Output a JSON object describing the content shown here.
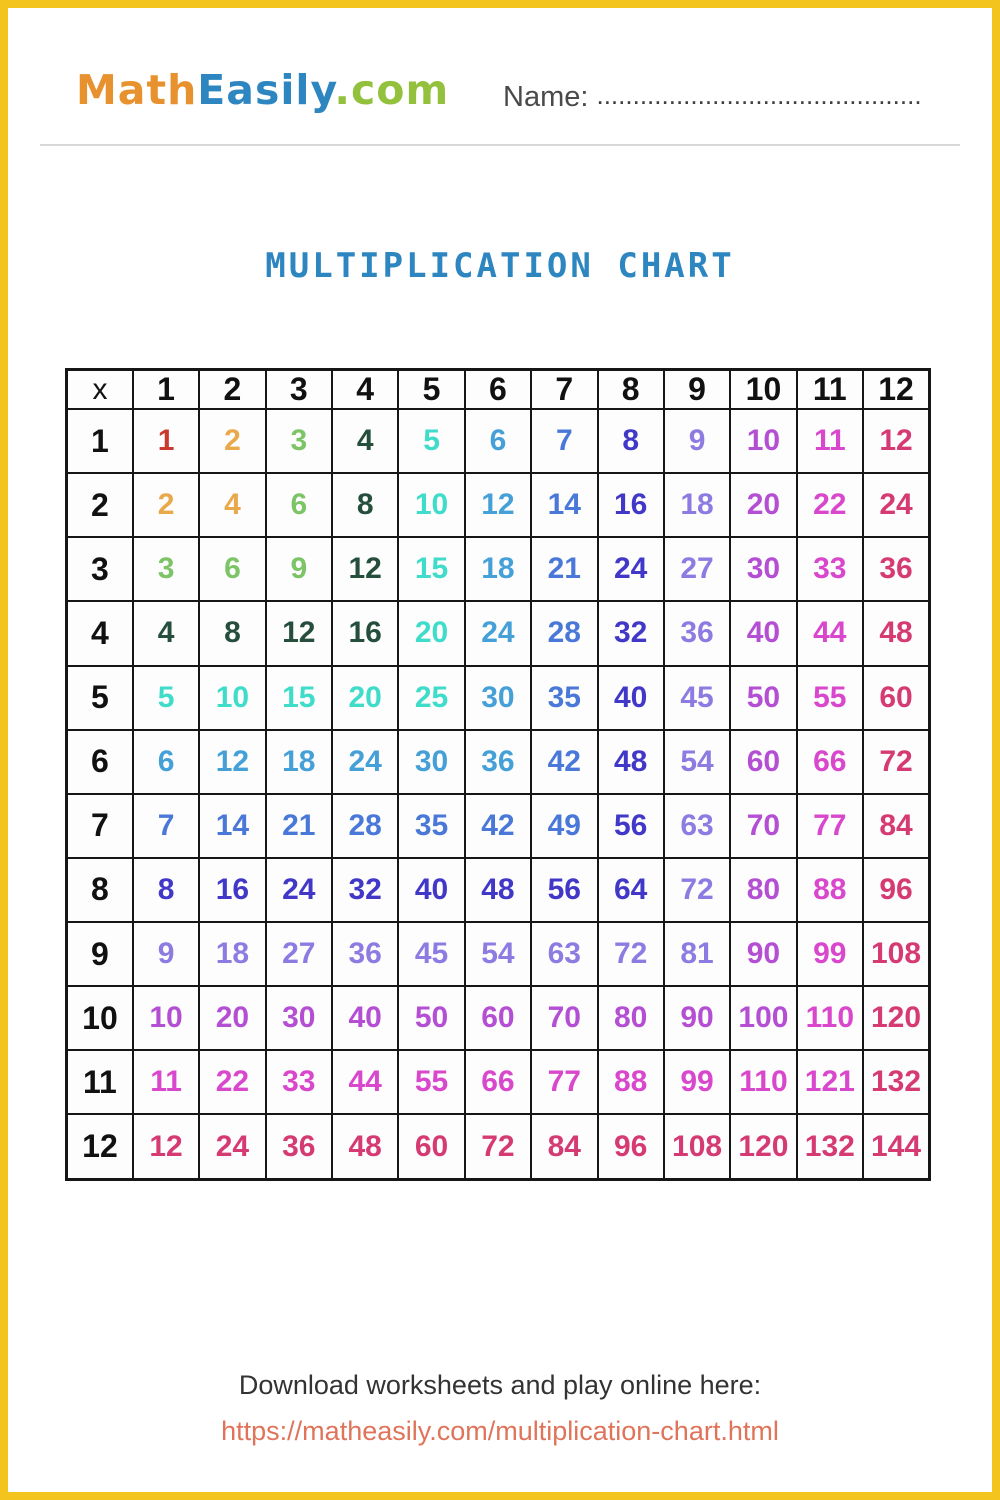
{
  "page": {
    "border_color": "#F2C41D"
  },
  "header": {
    "logo": {
      "part_math": "Math",
      "part_easily": "Easily",
      "part_com": ".com",
      "colors": {
        "math": "#E8922F",
        "easily": "#2E86C1",
        "com": "#94C13D"
      }
    },
    "name_label": "Name:",
    "name_dots": "............................................."
  },
  "title": {
    "text": "MULTIPLICATION CHART",
    "color": "#2E86C1"
  },
  "table": {
    "corner": "x",
    "col_headers": [
      "1",
      "2",
      "3",
      "4",
      "5",
      "6",
      "7",
      "8",
      "9",
      "10",
      "11",
      "12"
    ],
    "row_headers": [
      "1",
      "2",
      "3",
      "4",
      "5",
      "6",
      "7",
      "8",
      "9",
      "10",
      "11",
      "12"
    ],
    "rows": [
      [
        1,
        2,
        3,
        4,
        5,
        6,
        7,
        8,
        9,
        10,
        11,
        12
      ],
      [
        2,
        4,
        6,
        8,
        10,
        12,
        14,
        16,
        18,
        20,
        22,
        24
      ],
      [
        3,
        6,
        9,
        12,
        15,
        18,
        21,
        24,
        27,
        30,
        33,
        36
      ],
      [
        4,
        8,
        12,
        16,
        20,
        24,
        28,
        32,
        36,
        40,
        44,
        48
      ],
      [
        5,
        10,
        15,
        20,
        25,
        30,
        35,
        40,
        45,
        50,
        55,
        60
      ],
      [
        6,
        12,
        18,
        24,
        30,
        36,
        42,
        48,
        54,
        60,
        66,
        72
      ],
      [
        7,
        14,
        21,
        28,
        35,
        42,
        49,
        56,
        63,
        70,
        77,
        84
      ],
      [
        8,
        16,
        24,
        32,
        40,
        48,
        56,
        64,
        72,
        80,
        88,
        96
      ],
      [
        9,
        18,
        27,
        36,
        45,
        54,
        63,
        72,
        81,
        90,
        99,
        108
      ],
      [
        10,
        20,
        30,
        40,
        50,
        60,
        70,
        80,
        90,
        100,
        110,
        120
      ],
      [
        11,
        22,
        33,
        44,
        55,
        66,
        77,
        88,
        99,
        110,
        121,
        132
      ],
      [
        12,
        24,
        36,
        48,
        60,
        72,
        84,
        96,
        108,
        120,
        132,
        144
      ]
    ],
    "palette": [
      "#C9392E",
      "#E9A94B",
      "#7CC466",
      "#254F3C",
      "#3EDCC9",
      "#46A0D8",
      "#4A78D8",
      "#4238C8",
      "#8D7BE2",
      "#B44FD4",
      "#D847CC",
      "#D53A72"
    ],
    "header_text_color": "#111111"
  },
  "footer": {
    "line1": "Download worksheets and play online here:",
    "link_text": "https://matheasily.com/multiplication-chart.html",
    "link_color": "#E0745A"
  }
}
